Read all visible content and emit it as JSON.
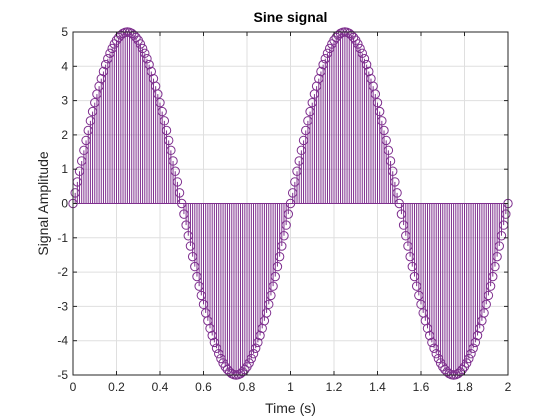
{
  "chart_data": {
    "type": "stem",
    "title": "Sine signal",
    "xlabel": "Time (s)",
    "ylabel": "Signal Amplitude",
    "xlim": [
      0,
      2
    ],
    "ylim": [
      -5,
      5
    ],
    "x_ticks": [
      "0",
      "0.2",
      "0.4",
      "0.6",
      "0.8",
      "1",
      "1.2",
      "1.4",
      "1.6",
      "1.8",
      "2"
    ],
    "y_ticks": [
      "-5",
      "-4",
      "-3",
      "-2",
      "-1",
      "0",
      "1",
      "2",
      "3",
      "4",
      "5"
    ],
    "grid": true,
    "series": [
      {
        "color": "#7E2F8E",
        "marker": "open-circle",
        "x": [
          0.0,
          0.01,
          0.02,
          0.03,
          0.04,
          0.05,
          0.06,
          0.07,
          0.08,
          0.09,
          0.1,
          0.11,
          0.12,
          0.13,
          0.14,
          0.15,
          0.16,
          0.17,
          0.18,
          0.19,
          0.2,
          0.21,
          0.22,
          0.23,
          0.24,
          0.25,
          0.26,
          0.27,
          0.28,
          0.29,
          0.3,
          0.31,
          0.32,
          0.33,
          0.34,
          0.35,
          0.36,
          0.37,
          0.38,
          0.39,
          0.4,
          0.41,
          0.42,
          0.43,
          0.44,
          0.45,
          0.46,
          0.47,
          0.48,
          0.49,
          0.5,
          0.51,
          0.52,
          0.53,
          0.54,
          0.55,
          0.56,
          0.57,
          0.58,
          0.59,
          0.6,
          0.61,
          0.62,
          0.63,
          0.64,
          0.65,
          0.66,
          0.67,
          0.68,
          0.69,
          0.7,
          0.71,
          0.72,
          0.73,
          0.74,
          0.75,
          0.76,
          0.77,
          0.78,
          0.79,
          0.8,
          0.81,
          0.82,
          0.83,
          0.84,
          0.85,
          0.86,
          0.87,
          0.88,
          0.89,
          0.9,
          0.91,
          0.92,
          0.93,
          0.94,
          0.95,
          0.96,
          0.97,
          0.98,
          0.99,
          1.0,
          1.01,
          1.02,
          1.03,
          1.04,
          1.05,
          1.06,
          1.07,
          1.08,
          1.09,
          1.1,
          1.11,
          1.12,
          1.13,
          1.14,
          1.15,
          1.16,
          1.17,
          1.18,
          1.19,
          1.2,
          1.21,
          1.22,
          1.23,
          1.24,
          1.25,
          1.26,
          1.27,
          1.28,
          1.29,
          1.3,
          1.31,
          1.32,
          1.33,
          1.34,
          1.35,
          1.36,
          1.37,
          1.38,
          1.39,
          1.4,
          1.41,
          1.42,
          1.43,
          1.44,
          1.45,
          1.46,
          1.47,
          1.48,
          1.49,
          1.5,
          1.51,
          1.52,
          1.53,
          1.54,
          1.55,
          1.56,
          1.57,
          1.58,
          1.59,
          1.6,
          1.61,
          1.62,
          1.63,
          1.64,
          1.65,
          1.66,
          1.67,
          1.68,
          1.69,
          1.7,
          1.71,
          1.72,
          1.73,
          1.74,
          1.75,
          1.76,
          1.77,
          1.78,
          1.79,
          1.8,
          1.81,
          1.82,
          1.83,
          1.84,
          1.85,
          1.86,
          1.87,
          1.88,
          1.89,
          1.9,
          1.91,
          1.92,
          1.93,
          1.94,
          1.95,
          1.96,
          1.97,
          1.98,
          1.99,
          2.0
        ],
        "y": [
          0.0,
          0.31,
          0.63,
          0.94,
          1.24,
          1.55,
          1.84,
          2.13,
          2.41,
          2.68,
          2.94,
          3.19,
          3.42,
          3.64,
          3.85,
          4.05,
          4.22,
          4.38,
          4.52,
          4.65,
          4.76,
          4.84,
          4.91,
          4.96,
          4.99,
          5.0,
          4.99,
          4.96,
          4.91,
          4.84,
          4.76,
          4.65,
          4.52,
          4.38,
          4.22,
          4.05,
          3.85,
          3.64,
          3.42,
          3.19,
          2.94,
          2.68,
          2.41,
          2.13,
          1.84,
          1.55,
          1.24,
          0.94,
          0.63,
          0.31,
          0.0,
          -0.31,
          -0.63,
          -0.94,
          -1.24,
          -1.55,
          -1.84,
          -2.13,
          -2.41,
          -2.68,
          -2.94,
          -3.19,
          -3.42,
          -3.64,
          -3.85,
          -4.05,
          -4.22,
          -4.38,
          -4.52,
          -4.65,
          -4.76,
          -4.84,
          -4.91,
          -4.96,
          -4.99,
          -5.0,
          -4.99,
          -4.96,
          -4.91,
          -4.84,
          -4.76,
          -4.65,
          -4.52,
          -4.38,
          -4.22,
          -4.05,
          -3.85,
          -3.64,
          -3.42,
          -3.19,
          -2.94,
          -2.68,
          -2.41,
          -2.13,
          -1.84,
          -1.55,
          -1.24,
          -0.94,
          -0.63,
          -0.31,
          0.0,
          0.31,
          0.63,
          0.94,
          1.24,
          1.55,
          1.84,
          2.13,
          2.41,
          2.68,
          2.94,
          3.19,
          3.42,
          3.64,
          3.85,
          4.05,
          4.22,
          4.38,
          4.52,
          4.65,
          4.76,
          4.84,
          4.91,
          4.96,
          4.99,
          5.0,
          4.99,
          4.96,
          4.91,
          4.84,
          4.76,
          4.65,
          4.52,
          4.38,
          4.22,
          4.05,
          3.85,
          3.64,
          3.42,
          3.19,
          2.94,
          2.68,
          2.41,
          2.13,
          1.84,
          1.55,
          1.24,
          0.94,
          0.63,
          0.31,
          0.0,
          -0.31,
          -0.63,
          -0.94,
          -1.24,
          -1.55,
          -1.84,
          -2.13,
          -2.41,
          -2.68,
          -2.94,
          -3.19,
          -3.42,
          -3.64,
          -3.85,
          -4.05,
          -4.22,
          -4.38,
          -4.52,
          -4.65,
          -4.76,
          -4.84,
          -4.91,
          -4.96,
          -4.99,
          -5.0,
          -4.99,
          -4.96,
          -4.91,
          -4.84,
          -4.76,
          -4.65,
          -4.52,
          -4.38,
          -4.22,
          -4.05,
          -3.85,
          -3.64,
          -3.42,
          -3.19,
          -2.94,
          -2.68,
          -2.41,
          -2.13,
          -1.84,
          -1.55,
          -1.24,
          -0.94,
          -0.63,
          -0.31,
          0.0
        ]
      }
    ]
  }
}
